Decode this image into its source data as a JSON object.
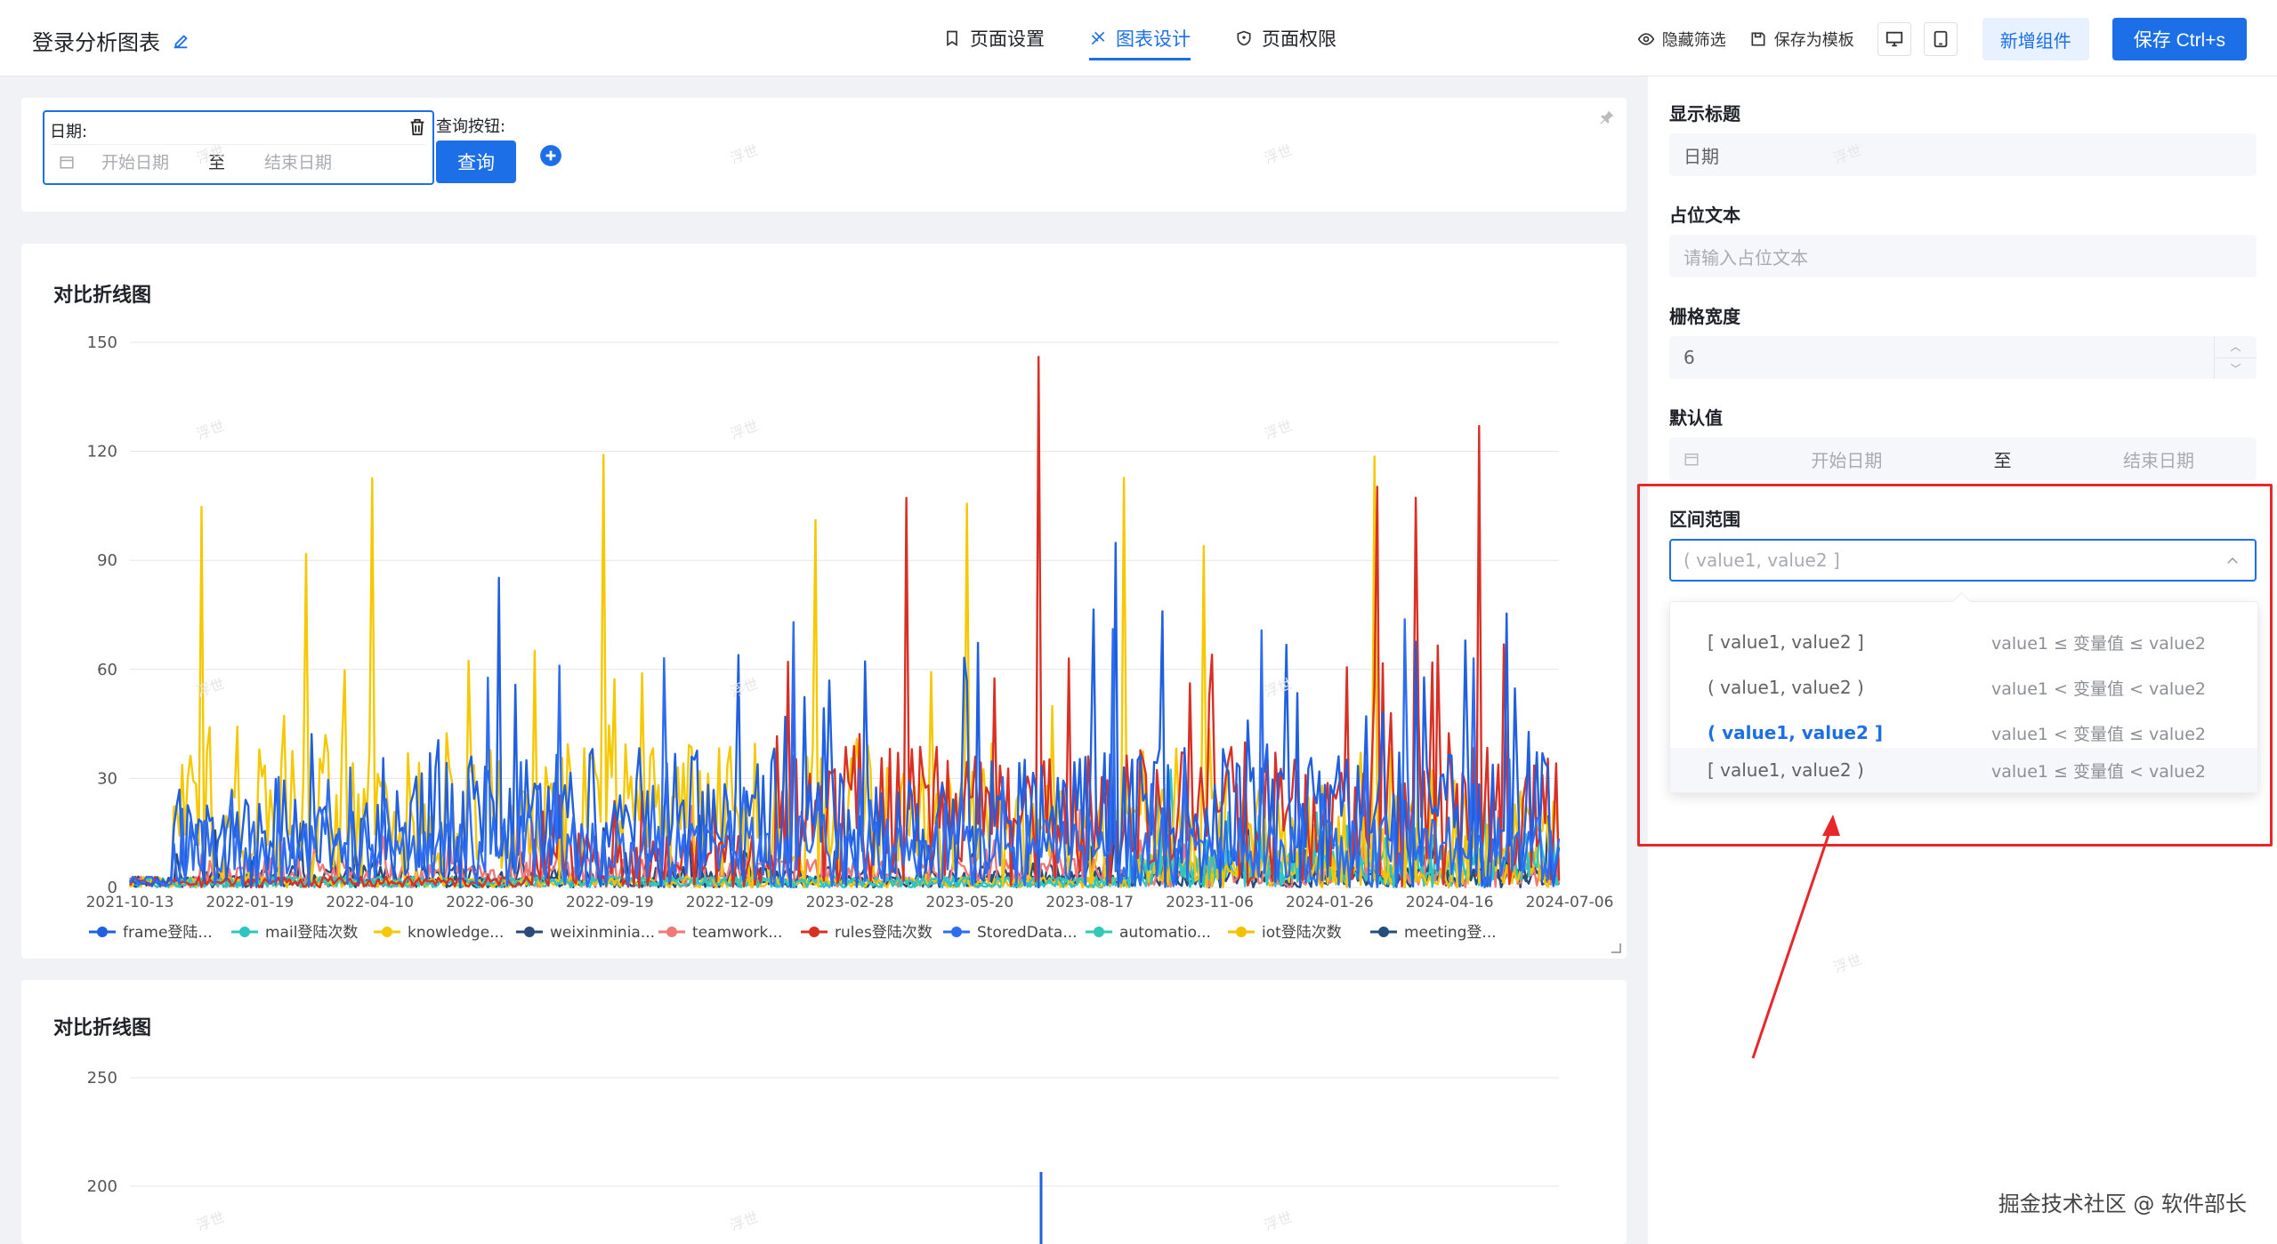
{
  "header": {
    "title": "登录分析图表",
    "tabs": [
      {
        "label": "页面设置",
        "active": false
      },
      {
        "label": "图表设计",
        "active": true
      },
      {
        "label": "页面权限",
        "active": false
      }
    ],
    "hide_filter": "隐藏筛选",
    "save_template": "保存为模板",
    "add_component": "新增组件",
    "save": "保存 Ctrl+s"
  },
  "filter": {
    "date_label": "日期:",
    "start_placeholder": "开始日期",
    "separator": "至",
    "end_placeholder": "结束日期",
    "query_label": "查询按钮:",
    "query_button": "查询"
  },
  "charts": {
    "first_title": "对比折线图",
    "second_title": "对比折线图"
  },
  "chart_data": [
    {
      "type": "line",
      "title": "对比折线图",
      "ylim": [
        0,
        150
      ],
      "y_ticks": [
        "150",
        "120",
        "90",
        "60",
        "30",
        "0"
      ],
      "x_ticks": [
        "2021-10-13",
        "2022-01-19",
        "2022-04-10",
        "2022-06-30",
        "2022-09-19",
        "2022-12-09",
        "2023-02-28",
        "2023-05-20",
        "2023-08-17",
        "2023-11-06",
        "2024-01-26",
        "2024-04-16",
        "2024-07-06"
      ],
      "legend": "bottom",
      "series": [
        {
          "name": "frame登陆...",
          "color": "#1f5fe0",
          "amp": 35,
          "peak": 95
        },
        {
          "name": "mail登陆次数",
          "color": "#2ec4c4",
          "amp": 12,
          "peak": 35
        },
        {
          "name": "knowledge...",
          "color": "#f5c800",
          "amp": 40,
          "peak": 119
        },
        {
          "name": "weixinminia...",
          "color": "#2b4a7a",
          "amp": 6,
          "peak": 20
        },
        {
          "name": "teamwork...",
          "color": "#f07878",
          "amp": 8,
          "peak": 25
        },
        {
          "name": "rules登陆次数",
          "color": "#d93025",
          "amp": 30,
          "peak": 146
        },
        {
          "name": "StoredData...",
          "color": "#2f6df0",
          "amp": 20,
          "peak": 80
        },
        {
          "name": "automatio...",
          "color": "#33c9b8",
          "amp": 10,
          "peak": 30
        },
        {
          "name": "iot登陆次数",
          "color": "#f2c200",
          "amp": 10,
          "peak": 30
        },
        {
          "name": "meeting登...",
          "color": "#23507a",
          "amp": 5,
          "peak": 15
        }
      ]
    },
    {
      "type": "line",
      "title": "对比折线图",
      "y_ticks": [
        "250",
        "200"
      ],
      "ylim": [
        0,
        250
      ]
    }
  ],
  "panel": {
    "display_title_label": "显示标题",
    "display_title_value": "日期",
    "placeholder_label": "占位文本",
    "placeholder_input": "请输入占位文本",
    "grid_width_label": "栅格宽度",
    "grid_width_value": "6",
    "default_label": "默认值",
    "default_start": "开始日期",
    "default_sep": "至",
    "default_end": "结束日期",
    "range_label": "区间范围",
    "range_selected": "( value1, value2 ]",
    "options": [
      {
        "value": "[ value1, value2 ]",
        "desc": "value1 ≤ 变量值 ≤ value2"
      },
      {
        "value": "( value1, value2 )",
        "desc": "value1 < 变量值 < value2"
      },
      {
        "value": "( value1, value2 ]",
        "desc": "value1 < 变量值 ≤ value2"
      },
      {
        "value": "[ value1, value2 )",
        "desc": "value1 ≤ 变量值 < value2"
      }
    ]
  },
  "footer_watermark": "掘金技术社区 @ 软件部长",
  "watermark": "浮世"
}
